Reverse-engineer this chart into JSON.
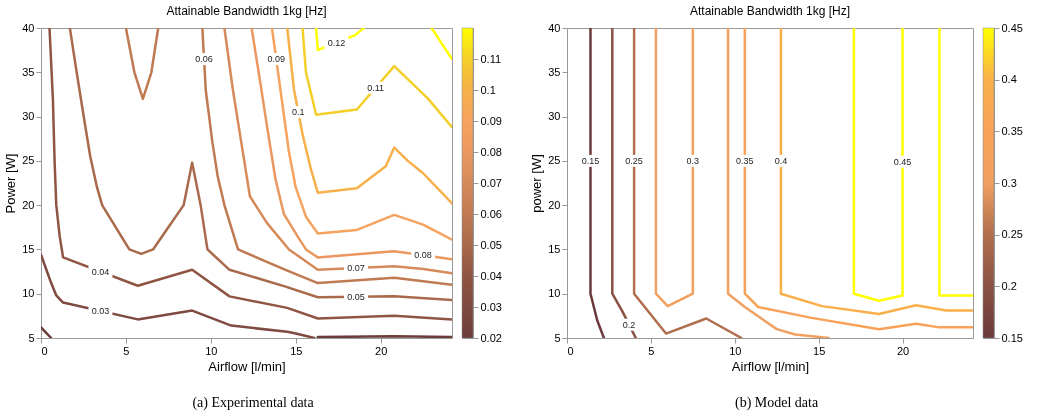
{
  "chart_data": [
    {
      "type": "line",
      "title": "Attainable Bandwidth 1kg [Hz]",
      "xlabel": "Airflow [l/min]",
      "ylabel": "Power [W]",
      "xlim": [
        0,
        24.2
      ],
      "xticks": [
        0,
        5,
        10,
        15,
        20
      ],
      "ylim": [
        5,
        40
      ],
      "yticks": [
        5,
        10,
        15,
        20,
        25,
        30,
        35,
        40
      ],
      "clim": [
        0.02,
        0.12
      ],
      "cticks": [
        0.02,
        0.03,
        0.04,
        0.05,
        0.06,
        0.07,
        0.08,
        0.09,
        0.1,
        0.11
      ],
      "annotations": [
        "(a) Experimental data"
      ],
      "series": [
        {
          "color": "#6b3d3a",
          "x": [
            0,
            0.6,
            10,
            16.3,
            20.8,
            24.2
          ],
          "values": [
            6.2,
            5,
            null,
            5.1,
            5.2,
            5.1
          ]
        },
        {
          "name": "0.03",
          "color": "#7f4a40",
          "x": [
            0,
            0.6,
            0.9,
            1.3,
            5.7,
            8.9,
            11.2,
            14.5,
            15,
            16.1
          ],
          "values": [
            14.4,
            11.2,
            9.8,
            9.0,
            7.1,
            8.1,
            6.4,
            5.7,
            5.5,
            5.0
          ]
        },
        {
          "name": "0.04",
          "color": "#8f5542",
          "x": [
            0.5,
            0.7,
            0.8,
            0.9,
            1.1,
            1.3,
            5.7,
            8.9,
            11.1,
            14.5,
            16.3,
            20.8,
            24.2
          ],
          "values": [
            40,
            32,
            25,
            20,
            16.5,
            14.1,
            10.9,
            12.7,
            9.7,
            8.4,
            7.2,
            7.5,
            7.1
          ]
        },
        {
          "name": "0.05",
          "color": "#a86a4a",
          "x": [
            1.7,
            2.1,
            2.6,
            2.9,
            3.3,
            3.6,
            5.2,
            5.9,
            6.6,
            7.5,
            8.4,
            8.9,
            9.4,
            9.8,
            11.1,
            14.4,
            16.3,
            20.8,
            24.2
          ],
          "values": [
            40,
            35,
            29,
            25.5,
            22,
            20,
            15,
            14.5,
            15,
            17.5,
            20,
            24.8,
            20,
            15,
            12.7,
            10.8,
            9.6,
            9.7,
            9.3
          ]
        },
        {
          "name": "0.06",
          "color": "#c07a52",
          "x": [
            5,
            5.5,
            6,
            6.5,
            6.9,
            8,
            9.5,
            9.7,
            10.1,
            10.4,
            10.8,
            11.6,
            14.4,
            16.3,
            20.8,
            24.2
          ],
          "values": [
            40,
            35,
            32,
            35,
            40,
            null,
            40,
            33,
            27,
            23.3,
            20,
            15,
            12.7,
            11.2,
            11.8,
            11.0
          ]
        },
        {
          "name": "0.07",
          "color": "#d68a5a",
          "x": [
            10.8,
            11.3,
            11.8,
            12.3,
            13.3,
            14.6,
            16.3,
            20.8,
            22.5,
            24.2
          ],
          "values": [
            40,
            33,
            27,
            21,
            18,
            15,
            12.7,
            13.1,
            12.8,
            12.3
          ]
        },
        {
          "name": "0.08",
          "color": "#ea9860",
          "x": [
            12.4,
            12.9,
            13.3,
            13.8,
            14.3,
            15.1,
            15.6,
            16.3,
            20.8,
            24.2
          ],
          "values": [
            40,
            34,
            29,
            23,
            19,
            16.5,
            15.0,
            14.1,
            14.8,
            13.9
          ]
        },
        {
          "name": "0.09",
          "color": "#f5a35e",
          "x": [
            13.6,
            14.1,
            14.6,
            15.0,
            15.6,
            16.3,
            18.6,
            20.8,
            22.5,
            24.2
          ],
          "values": [
            40,
            33,
            26,
            22,
            18.7,
            16.8,
            17.2,
            18.9,
            17.8,
            16.1
          ]
        },
        {
          "name": "0.1",
          "color": "#f7b04a",
          "x": [
            14.5,
            14.9,
            15.4,
            15.9,
            16.3,
            18.6,
            20.3,
            20.8,
            21.6,
            22.5,
            24.2
          ],
          "values": [
            40,
            33,
            28,
            24,
            21.4,
            21.9,
            24.4,
            26.5,
            25,
            23.6,
            20.2
          ]
        },
        {
          "name": "0.11",
          "color": "#f4cf2a",
          "x": [
            15.4,
            15.6,
            16.2,
            18.6,
            20.8,
            22.8,
            24.2
          ],
          "values": [
            40,
            35,
            30.2,
            30.8,
            35.7,
            32,
            28.8
          ]
        },
        {
          "name": "0.12",
          "color": "#ffff00",
          "x": [
            16.2,
            16.3,
            18.5,
            19,
            21,
            23,
            24.2
          ],
          "values": [
            40,
            37.5,
            39.2,
            40,
            null,
            40,
            36.5
          ]
        }
      ]
    },
    {
      "type": "line",
      "title": "Attainable Bandwidth 1kg [Hz]",
      "xlabel": "Airflow [l/min]",
      "ylabel": "power [W]",
      "xlim": [
        0,
        24.2
      ],
      "xticks": [
        0,
        5,
        10,
        15,
        20
      ],
      "ylim": [
        5,
        40
      ],
      "yticks": [
        5,
        10,
        15,
        20,
        25,
        30,
        35,
        40
      ],
      "clim": [
        0.15,
        0.45
      ],
      "cticks": [
        0.15,
        0.2,
        0.25,
        0.3,
        0.35,
        0.4,
        0.45
      ],
      "annotations": [
        "(b) Model data"
      ],
      "series": [
        {
          "name": "0.15",
          "color": "#6b3a3a",
          "x": [
            1.4,
            1.4,
            1.8,
            2.2
          ],
          "values": [
            40,
            10,
            7,
            5
          ]
        },
        {
          "name": "0.2",
          "color": "#8a5245",
          "x": [
            2.7,
            2.7,
            3.3,
            4.1
          ],
          "values": [
            40,
            10,
            8,
            5
          ]
        },
        {
          "name": "0.25",
          "color": "#b06e4d",
          "x": [
            4.0,
            4.0,
            5.9,
            8.3,
            10.4
          ],
          "values": [
            40,
            10,
            5.5,
            7.2,
            5
          ]
        },
        {
          "name": "0.3",
          "color": "#f0a060",
          "x": [
            5.3,
            5.3,
            6.0,
            7.5,
            7.5,
            8.5,
            9.6,
            9.6,
            10.6,
            12.5,
            13.6,
            15.6
          ],
          "values": [
            40,
            10,
            8.6,
            10,
            40,
            null,
            40,
            10,
            8.5,
            6.0,
            5.4,
            5.0
          ]
        },
        {
          "name": "0.35",
          "color": "#f7a258",
          "x": [
            10.6,
            10.6,
            11.4,
            14.5,
            18.6,
            20.8,
            22.2,
            24.2
          ],
          "values": [
            40,
            10,
            8.5,
            7.3,
            6.0,
            6.6,
            6.2,
            6.2
          ]
        },
        {
          "name": "0.4",
          "color": "#f9b04a",
          "x": [
            12.75,
            12.75,
            15.2,
            18.6,
            20.8,
            22.6,
            24.2
          ],
          "values": [
            40,
            10,
            8.6,
            7.7,
            8.7,
            8.1,
            8.1
          ]
        },
        {
          "name": "0.45",
          "color": "#ffff00",
          "x": [
            17.1,
            17.1,
            18.6,
            20,
            20,
            21,
            22.2,
            22.2,
            24.2
          ],
          "values": [
            40,
            10,
            9.2,
            9.8,
            40,
            null,
            40,
            9.8,
            9.8
          ]
        }
      ]
    }
  ]
}
